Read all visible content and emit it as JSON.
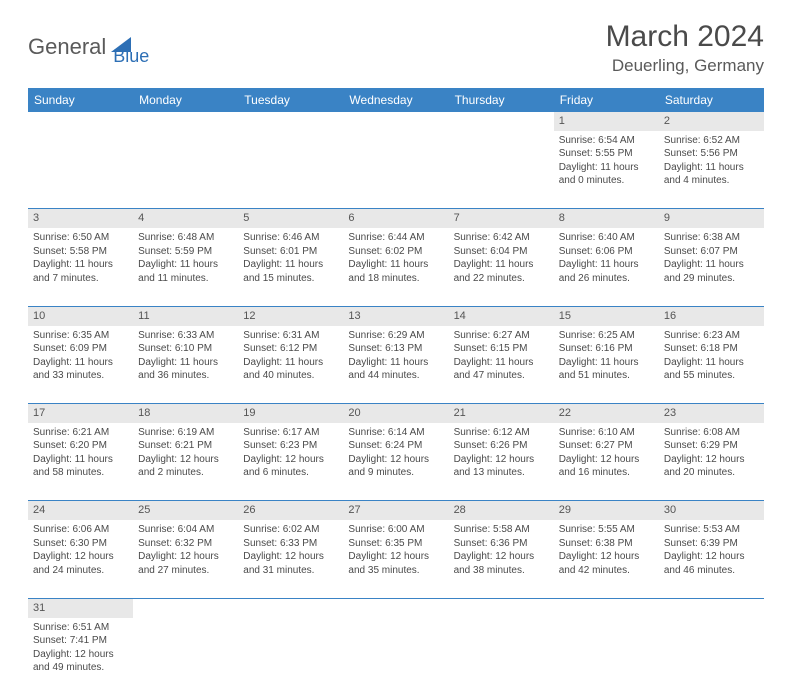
{
  "logo": {
    "part1": "General",
    "part2": "Blue"
  },
  "title": "March 2024",
  "location": "Deuerling, Germany",
  "colors": {
    "header_bg": "#3a83c5",
    "header_text": "#ffffff",
    "daynum_bg": "#e8e8e8",
    "border": "#3a83c5",
    "logo_accent": "#2d6fb5",
    "text": "#4a4a4a"
  },
  "weekdays": [
    "Sunday",
    "Monday",
    "Tuesday",
    "Wednesday",
    "Thursday",
    "Friday",
    "Saturday"
  ],
  "weeks": [
    [
      null,
      null,
      null,
      null,
      null,
      {
        "n": "1",
        "sr": "Sunrise: 6:54 AM",
        "ss": "Sunset: 5:55 PM",
        "d1": "Daylight: 11 hours",
        "d2": "and 0 minutes."
      },
      {
        "n": "2",
        "sr": "Sunrise: 6:52 AM",
        "ss": "Sunset: 5:56 PM",
        "d1": "Daylight: 11 hours",
        "d2": "and 4 minutes."
      }
    ],
    [
      {
        "n": "3",
        "sr": "Sunrise: 6:50 AM",
        "ss": "Sunset: 5:58 PM",
        "d1": "Daylight: 11 hours",
        "d2": "and 7 minutes."
      },
      {
        "n": "4",
        "sr": "Sunrise: 6:48 AM",
        "ss": "Sunset: 5:59 PM",
        "d1": "Daylight: 11 hours",
        "d2": "and 11 minutes."
      },
      {
        "n": "5",
        "sr": "Sunrise: 6:46 AM",
        "ss": "Sunset: 6:01 PM",
        "d1": "Daylight: 11 hours",
        "d2": "and 15 minutes."
      },
      {
        "n": "6",
        "sr": "Sunrise: 6:44 AM",
        "ss": "Sunset: 6:02 PM",
        "d1": "Daylight: 11 hours",
        "d2": "and 18 minutes."
      },
      {
        "n": "7",
        "sr": "Sunrise: 6:42 AM",
        "ss": "Sunset: 6:04 PM",
        "d1": "Daylight: 11 hours",
        "d2": "and 22 minutes."
      },
      {
        "n": "8",
        "sr": "Sunrise: 6:40 AM",
        "ss": "Sunset: 6:06 PM",
        "d1": "Daylight: 11 hours",
        "d2": "and 26 minutes."
      },
      {
        "n": "9",
        "sr": "Sunrise: 6:38 AM",
        "ss": "Sunset: 6:07 PM",
        "d1": "Daylight: 11 hours",
        "d2": "and 29 minutes."
      }
    ],
    [
      {
        "n": "10",
        "sr": "Sunrise: 6:35 AM",
        "ss": "Sunset: 6:09 PM",
        "d1": "Daylight: 11 hours",
        "d2": "and 33 minutes."
      },
      {
        "n": "11",
        "sr": "Sunrise: 6:33 AM",
        "ss": "Sunset: 6:10 PM",
        "d1": "Daylight: 11 hours",
        "d2": "and 36 minutes."
      },
      {
        "n": "12",
        "sr": "Sunrise: 6:31 AM",
        "ss": "Sunset: 6:12 PM",
        "d1": "Daylight: 11 hours",
        "d2": "and 40 minutes."
      },
      {
        "n": "13",
        "sr": "Sunrise: 6:29 AM",
        "ss": "Sunset: 6:13 PM",
        "d1": "Daylight: 11 hours",
        "d2": "and 44 minutes."
      },
      {
        "n": "14",
        "sr": "Sunrise: 6:27 AM",
        "ss": "Sunset: 6:15 PM",
        "d1": "Daylight: 11 hours",
        "d2": "and 47 minutes."
      },
      {
        "n": "15",
        "sr": "Sunrise: 6:25 AM",
        "ss": "Sunset: 6:16 PM",
        "d1": "Daylight: 11 hours",
        "d2": "and 51 minutes."
      },
      {
        "n": "16",
        "sr": "Sunrise: 6:23 AM",
        "ss": "Sunset: 6:18 PM",
        "d1": "Daylight: 11 hours",
        "d2": "and 55 minutes."
      }
    ],
    [
      {
        "n": "17",
        "sr": "Sunrise: 6:21 AM",
        "ss": "Sunset: 6:20 PM",
        "d1": "Daylight: 11 hours",
        "d2": "and 58 minutes."
      },
      {
        "n": "18",
        "sr": "Sunrise: 6:19 AM",
        "ss": "Sunset: 6:21 PM",
        "d1": "Daylight: 12 hours",
        "d2": "and 2 minutes."
      },
      {
        "n": "19",
        "sr": "Sunrise: 6:17 AM",
        "ss": "Sunset: 6:23 PM",
        "d1": "Daylight: 12 hours",
        "d2": "and 6 minutes."
      },
      {
        "n": "20",
        "sr": "Sunrise: 6:14 AM",
        "ss": "Sunset: 6:24 PM",
        "d1": "Daylight: 12 hours",
        "d2": "and 9 minutes."
      },
      {
        "n": "21",
        "sr": "Sunrise: 6:12 AM",
        "ss": "Sunset: 6:26 PM",
        "d1": "Daylight: 12 hours",
        "d2": "and 13 minutes."
      },
      {
        "n": "22",
        "sr": "Sunrise: 6:10 AM",
        "ss": "Sunset: 6:27 PM",
        "d1": "Daylight: 12 hours",
        "d2": "and 16 minutes."
      },
      {
        "n": "23",
        "sr": "Sunrise: 6:08 AM",
        "ss": "Sunset: 6:29 PM",
        "d1": "Daylight: 12 hours",
        "d2": "and 20 minutes."
      }
    ],
    [
      {
        "n": "24",
        "sr": "Sunrise: 6:06 AM",
        "ss": "Sunset: 6:30 PM",
        "d1": "Daylight: 12 hours",
        "d2": "and 24 minutes."
      },
      {
        "n": "25",
        "sr": "Sunrise: 6:04 AM",
        "ss": "Sunset: 6:32 PM",
        "d1": "Daylight: 12 hours",
        "d2": "and 27 minutes."
      },
      {
        "n": "26",
        "sr": "Sunrise: 6:02 AM",
        "ss": "Sunset: 6:33 PM",
        "d1": "Daylight: 12 hours",
        "d2": "and 31 minutes."
      },
      {
        "n": "27",
        "sr": "Sunrise: 6:00 AM",
        "ss": "Sunset: 6:35 PM",
        "d1": "Daylight: 12 hours",
        "d2": "and 35 minutes."
      },
      {
        "n": "28",
        "sr": "Sunrise: 5:58 AM",
        "ss": "Sunset: 6:36 PM",
        "d1": "Daylight: 12 hours",
        "d2": "and 38 minutes."
      },
      {
        "n": "29",
        "sr": "Sunrise: 5:55 AM",
        "ss": "Sunset: 6:38 PM",
        "d1": "Daylight: 12 hours",
        "d2": "and 42 minutes."
      },
      {
        "n": "30",
        "sr": "Sunrise: 5:53 AM",
        "ss": "Sunset: 6:39 PM",
        "d1": "Daylight: 12 hours",
        "d2": "and 46 minutes."
      }
    ],
    [
      {
        "n": "31",
        "sr": "Sunrise: 6:51 AM",
        "ss": "Sunset: 7:41 PM",
        "d1": "Daylight: 12 hours",
        "d2": "and 49 minutes."
      },
      null,
      null,
      null,
      null,
      null,
      null
    ]
  ]
}
